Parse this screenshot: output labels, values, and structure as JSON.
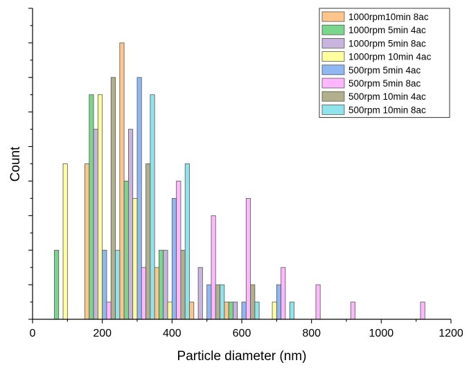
{
  "chart_data": {
    "type": "bar",
    "xlabel": "Particle diameter (nm)",
    "ylabel": "Count",
    "xlim": [
      0,
      1200
    ],
    "ylim": [
      0,
      18
    ],
    "x_ticks": [
      "0",
      "200",
      "400",
      "600",
      "800",
      "1000",
      "1200"
    ],
    "y_tick_labels_visible": false,
    "grid": false,
    "legend_position": "top-right",
    "bin_width_nm": 100,
    "series": [
      {
        "name": "1000rpm10min 8ac",
        "color": "#FFC58A",
        "values": [
          [
            200,
            9
          ],
          [
            300,
            16
          ],
          [
            400,
            3
          ],
          [
            500,
            1
          ],
          [
            600,
            1
          ]
        ]
      },
      {
        "name": "1000rpm 5min 4ac",
        "color": "#79D68C",
        "values": [
          [
            100,
            4
          ],
          [
            200,
            13
          ],
          [
            300,
            8
          ],
          [
            400,
            4
          ],
          [
            600,
            1
          ]
        ]
      },
      {
        "name": "1000rpm 5min 8ac",
        "color": "#C9B4DE",
        "values": [
          [
            200,
            11
          ],
          [
            300,
            11
          ],
          [
            400,
            4
          ],
          [
            500,
            3
          ],
          [
            600,
            1
          ]
        ]
      },
      {
        "name": "1000rpm 10min 4ac",
        "color": "#FFFF9E",
        "values": [
          [
            100,
            9
          ],
          [
            200,
            13
          ],
          [
            300,
            7
          ],
          [
            400,
            1
          ],
          [
            700,
            1
          ]
        ]
      },
      {
        "name": "500rpm 5min 4ac",
        "color": "#8FB8F2",
        "values": [
          [
            200,
            4
          ],
          [
            300,
            14
          ],
          [
            400,
            7
          ],
          [
            500,
            2
          ],
          [
            600,
            1
          ],
          [
            700,
            2
          ]
        ]
      },
      {
        "name": "500rpm 5min 8ac",
        "color": "#FFB8FF",
        "values": [
          [
            200,
            1
          ],
          [
            300,
            3
          ],
          [
            400,
            8
          ],
          [
            500,
            6
          ],
          [
            600,
            7
          ],
          [
            700,
            3
          ],
          [
            800,
            2
          ],
          [
            900,
            1
          ],
          [
            1100,
            1
          ]
        ]
      },
      {
        "name": "500rpm 10min 4ac",
        "color": "#B2B08C",
        "values": [
          [
            200,
            14
          ],
          [
            300,
            9
          ],
          [
            400,
            4
          ],
          [
            500,
            2
          ],
          [
            600,
            2
          ]
        ]
      },
      {
        "name": "500rpm 10min 8ac",
        "color": "#8FE3EB",
        "values": [
          [
            200,
            4
          ],
          [
            300,
            13
          ],
          [
            400,
            9
          ],
          [
            500,
            2
          ],
          [
            600,
            1
          ],
          [
            700,
            1
          ]
        ]
      }
    ]
  }
}
